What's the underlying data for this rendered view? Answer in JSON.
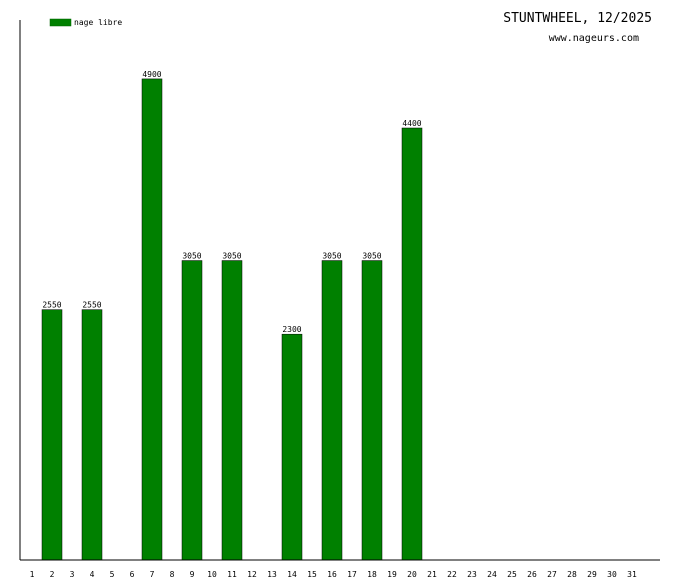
{
  "header": {
    "title": "STUNTWHEEL, 12/2025",
    "site": "www.nageurs.com"
  },
  "chart_data": {
    "type": "bar",
    "title": "STUNTWHEEL, 12/2025",
    "xlabel": "",
    "ylabel": "",
    "legend_position": "top-left",
    "grid": false,
    "ylim": [
      0,
      5500
    ],
    "categories": [
      "1",
      "2",
      "3",
      "4",
      "5",
      "6",
      "7",
      "8",
      "9",
      "10",
      "11",
      "12",
      "13",
      "14",
      "15",
      "16",
      "17",
      "18",
      "19",
      "20",
      "21",
      "22",
      "23",
      "24",
      "25",
      "26",
      "27",
      "28",
      "29",
      "30",
      "31"
    ],
    "series": [
      {
        "name": "nage libre",
        "color": "#008000",
        "values": [
          null,
          2550,
          null,
          2550,
          null,
          null,
          4900,
          null,
          3050,
          null,
          3050,
          null,
          null,
          2300,
          null,
          3050,
          null,
          3050,
          null,
          4400,
          null,
          null,
          null,
          null,
          null,
          null,
          null,
          null,
          null,
          null,
          null
        ]
      }
    ]
  }
}
